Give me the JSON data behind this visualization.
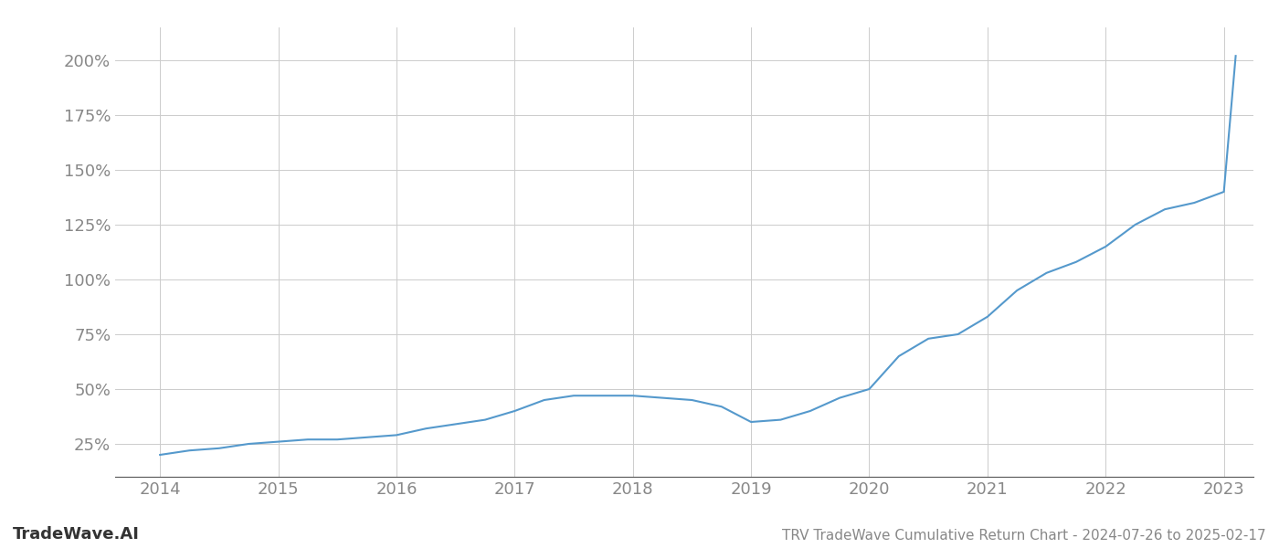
{
  "title": "TRV TradeWave Cumulative Return Chart - 2024-07-26 to 2025-02-17",
  "watermark": "TradeWave.AI",
  "line_color": "#5599cc",
  "background_color": "#ffffff",
  "grid_color": "#cccccc",
  "x_values": [
    2014.0,
    2014.25,
    2014.5,
    2014.75,
    2015.0,
    2015.25,
    2015.5,
    2015.75,
    2016.0,
    2016.25,
    2016.5,
    2016.75,
    2017.0,
    2017.25,
    2017.5,
    2017.75,
    2018.0,
    2018.25,
    2018.5,
    2018.75,
    2019.0,
    2019.25,
    2019.5,
    2019.75,
    2020.0,
    2020.25,
    2020.5,
    2020.75,
    2021.0,
    2021.25,
    2021.5,
    2021.75,
    2022.0,
    2022.25,
    2022.5,
    2022.75,
    2023.0,
    2023.1
  ],
  "y_values": [
    20,
    22,
    23,
    25,
    26,
    27,
    27,
    28,
    29,
    32,
    34,
    36,
    40,
    45,
    47,
    47,
    47,
    46,
    45,
    42,
    35,
    36,
    40,
    46,
    50,
    65,
    73,
    75,
    83,
    95,
    103,
    108,
    115,
    125,
    132,
    135,
    140,
    202
  ],
  "xlim": [
    2013.62,
    2023.25
  ],
  "ylim": [
    10,
    215
  ],
  "yticks": [
    25,
    50,
    75,
    100,
    125,
    150,
    175,
    200
  ],
  "xticks": [
    2014,
    2015,
    2016,
    2017,
    2018,
    2019,
    2020,
    2021,
    2022,
    2023
  ],
  "xtick_labels": [
    "2014",
    "2015",
    "2016",
    "2017",
    "2018",
    "2019",
    "2020",
    "2021",
    "2022",
    "2023"
  ],
  "ytick_labels": [
    "25%",
    "50%",
    "75%",
    "100%",
    "125%",
    "150%",
    "175%",
    "200%"
  ],
  "axis_label_color": "#888888",
  "spine_color": "#555555",
  "title_color": "#888888",
  "watermark_color": "#333333",
  "line_width": 1.5,
  "title_fontsize": 11,
  "tick_fontsize": 13,
  "watermark_fontsize": 13
}
